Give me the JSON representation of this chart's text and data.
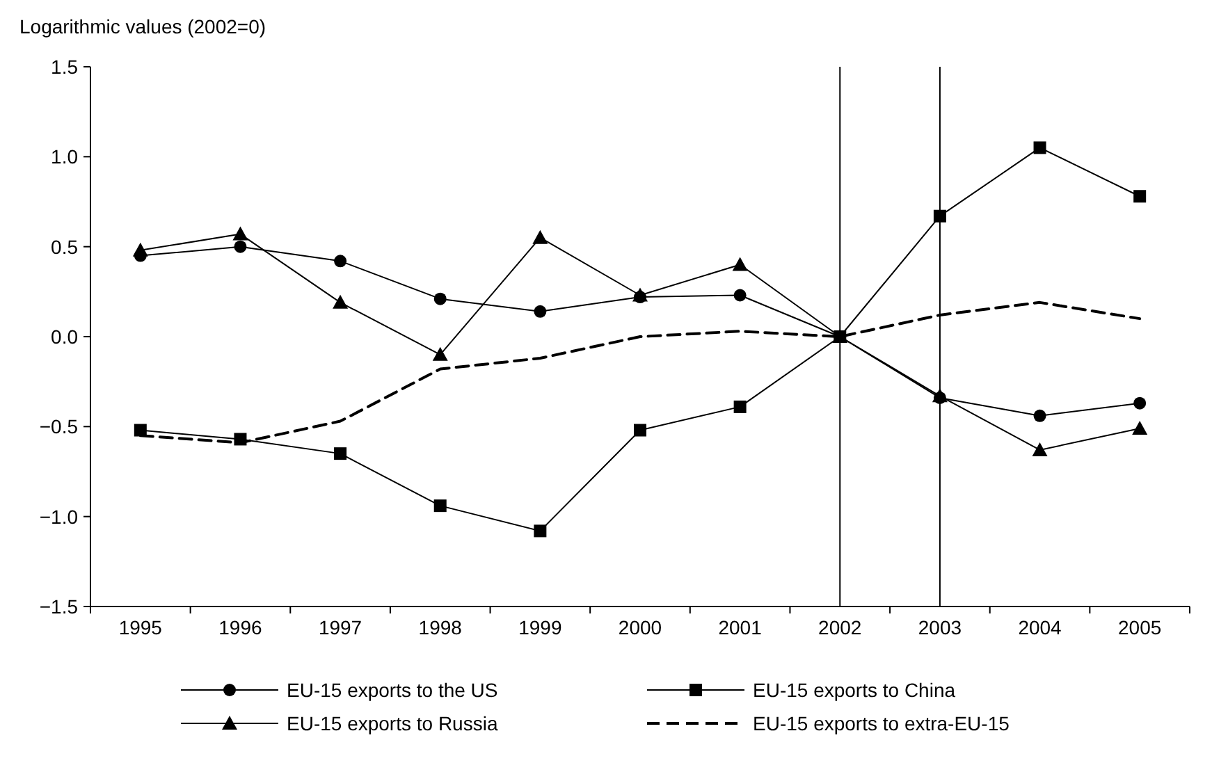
{
  "chart_data": {
    "type": "line",
    "ylabel": "Logarithmic values (2002=0)",
    "categories": [
      "1995",
      "1996",
      "1997",
      "1998",
      "1999",
      "2000",
      "2001",
      "2002",
      "2003",
      "2004",
      "2005"
    ],
    "ylim": [
      -1.5,
      1.5
    ],
    "yticks": [
      {
        "value": -1.5,
        "label": "−1.5"
      },
      {
        "value": -1,
        "label": "−1.0"
      },
      {
        "value": -0.5,
        "label": "−0.5"
      },
      {
        "value": 0,
        "label": "0.0"
      },
      {
        "value": 0.5,
        "label": "0.5"
      },
      {
        "value": 1,
        "label": "1.0"
      },
      {
        "value": 1.5,
        "label": "1.5"
      }
    ],
    "grid": false,
    "legend": "bottom",
    "ref_lines": [
      {
        "axis": "x",
        "value": "2002",
        "color": "#000000"
      },
      {
        "axis": "x",
        "value": "2003",
        "color": "#000000"
      }
    ],
    "series": [
      {
        "name": "EU-15 exports to the US",
        "color": "#000000",
        "marker": "circle",
        "line_style": "solid",
        "values": [
          0.45,
          0.5,
          0.42,
          0.21,
          0.14,
          0.22,
          0.23,
          0,
          -0.34,
          -0.44,
          -0.37
        ]
      },
      {
        "name": "EU-15 exports to China",
        "color": "#000000",
        "marker": "square",
        "line_style": "solid",
        "values": [
          -0.52,
          -0.57,
          -0.65,
          -0.94,
          -1.08,
          -0.52,
          -0.39,
          0,
          0.67,
          1.05,
          0.78
        ]
      },
      {
        "name": "EU-15 exports to Russia",
        "color": "#000000",
        "marker": "triangle",
        "line_style": "solid",
        "values": [
          0.48,
          0.57,
          0.19,
          -0.1,
          0.55,
          0.23,
          0.4,
          0,
          -0.33,
          -0.63,
          -0.51
        ]
      },
      {
        "name": "EU-15 exports to extra-EU-15",
        "color": "#000000",
        "marker": "none",
        "line_style": "dashed",
        "values": [
          -0.55,
          -0.59,
          -0.47,
          -0.18,
          -0.12,
          0,
          0.03,
          0,
          0.12,
          0.19,
          0.1
        ]
      }
    ]
  }
}
